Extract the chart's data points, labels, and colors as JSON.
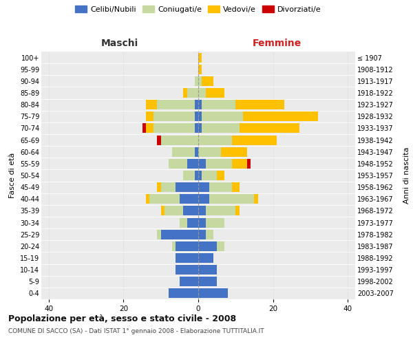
{
  "age_groups": [
    "0-4",
    "5-9",
    "10-14",
    "15-19",
    "20-24",
    "25-29",
    "30-34",
    "35-39",
    "40-44",
    "45-49",
    "50-54",
    "55-59",
    "60-64",
    "65-69",
    "70-74",
    "75-79",
    "80-84",
    "85-89",
    "90-94",
    "95-99",
    "100+"
  ],
  "birth_years": [
    "2003-2007",
    "1998-2002",
    "1993-1997",
    "1988-1992",
    "1983-1987",
    "1978-1982",
    "1973-1977",
    "1968-1972",
    "1963-1967",
    "1958-1962",
    "1953-1957",
    "1948-1952",
    "1943-1947",
    "1938-1942",
    "1933-1937",
    "1928-1932",
    "1923-1927",
    "1918-1922",
    "1913-1917",
    "1908-1912",
    "≤ 1907"
  ],
  "males": {
    "celibi": [
      8,
      5,
      6,
      6,
      6,
      10,
      3,
      4,
      5,
      6,
      1,
      3,
      1,
      0,
      1,
      1,
      1,
      0,
      0,
      0,
      0
    ],
    "coniugati": [
      0,
      0,
      0,
      0,
      1,
      1,
      2,
      5,
      8,
      4,
      3,
      5,
      6,
      10,
      11,
      11,
      10,
      3,
      1,
      0,
      0
    ],
    "vedovi": [
      0,
      0,
      0,
      0,
      0,
      0,
      0,
      1,
      1,
      1,
      0,
      0,
      0,
      0,
      2,
      2,
      3,
      1,
      0,
      0,
      0
    ],
    "divorziati": [
      0,
      0,
      0,
      0,
      0,
      0,
      0,
      0,
      0,
      0,
      0,
      0,
      0,
      1,
      1,
      0,
      0,
      0,
      0,
      0,
      0
    ]
  },
  "females": {
    "nubili": [
      8,
      5,
      5,
      4,
      5,
      2,
      2,
      2,
      3,
      3,
      1,
      2,
      0,
      0,
      1,
      1,
      1,
      0,
      0,
      0,
      0
    ],
    "coniugate": [
      0,
      0,
      0,
      0,
      2,
      2,
      5,
      8,
      12,
      6,
      4,
      7,
      6,
      9,
      10,
      11,
      9,
      2,
      1,
      0,
      0
    ],
    "vedove": [
      0,
      0,
      0,
      0,
      0,
      0,
      0,
      1,
      1,
      2,
      2,
      4,
      7,
      12,
      16,
      20,
      13,
      5,
      3,
      1,
      1
    ],
    "divorziate": [
      0,
      0,
      0,
      0,
      0,
      0,
      0,
      0,
      0,
      0,
      0,
      1,
      0,
      0,
      0,
      0,
      0,
      0,
      0,
      0,
      0
    ]
  },
  "colors": {
    "celibi": "#4472c4",
    "coniugati": "#c5d9a0",
    "vedovi": "#ffc000",
    "divorziati": "#cc0000"
  },
  "xlim": 42,
  "title": "Popolazione per età, sesso e stato civile - 2008",
  "subtitle": "COMUNE DI SACCO (SA) - Dati ISTAT 1° gennaio 2008 - Elaborazione TUTTITALIA.IT",
  "xlabel_left": "Maschi",
  "xlabel_right": "Femmine",
  "ylabel_left": "Fasce di età",
  "ylabel_right": "Anni di nascita",
  "legend_labels": [
    "Celibi/Nubili",
    "Coniugati/e",
    "Vedovi/e",
    "Divorziati/e"
  ],
  "bg_color": "#ffffff",
  "plot_bg": "#ebebeb"
}
